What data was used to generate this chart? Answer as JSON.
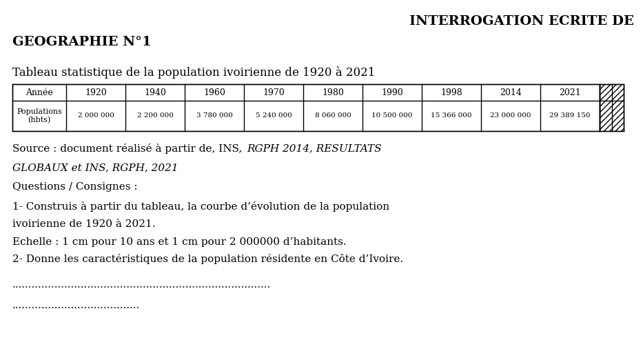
{
  "title_line1": "INTERROGATION ECRITE DE",
  "title_line2": "GEOGRAPHIE N°1",
  "subtitle": "Tableau statistique de la population ivoirienne de 1920 à 2021",
  "table_headers": [
    "Année",
    "1920",
    "1940",
    "1960",
    "1970",
    "1980",
    "1990",
    "1998",
    "2014",
    "2021"
  ],
  "table_row_label": "Populations\n(hbts)",
  "table_values": [
    "2 000 000",
    "2 200 000",
    "3 780 000",
    "5 240 000",
    "8 060 000",
    "10 500 000",
    "15 366 000",
    "23 000 000",
    "29 389 150"
  ],
  "source_normal": "Source : document réalisé à partir de, INS, ",
  "source_italic1": "RGPH 2014, RESULTATS",
  "source_italic2": "GLOBAUX et INS, RGPH, 2021",
  "questions_label": "Questions / Consignes :",
  "q1_line1": "1- Construis à partir du tableau, la courbe d’évolution de la population",
  "q1_line2": "ivoirienne de 1920 à 2021.",
  "echelle": "Echelle : 1 cm pour 10 ans et 1 cm pour 2 000000 d’habitants.",
  "q2": "2- Donne les caractéristiques de la population résidente en Côte d’Ivoire.",
  "dotted_line1": "...............................................................................",
  "dotted_line2": ".......................................",
  "bg_color": "#ffffff",
  "text_color": "#000000",
  "border_color": "#000000"
}
